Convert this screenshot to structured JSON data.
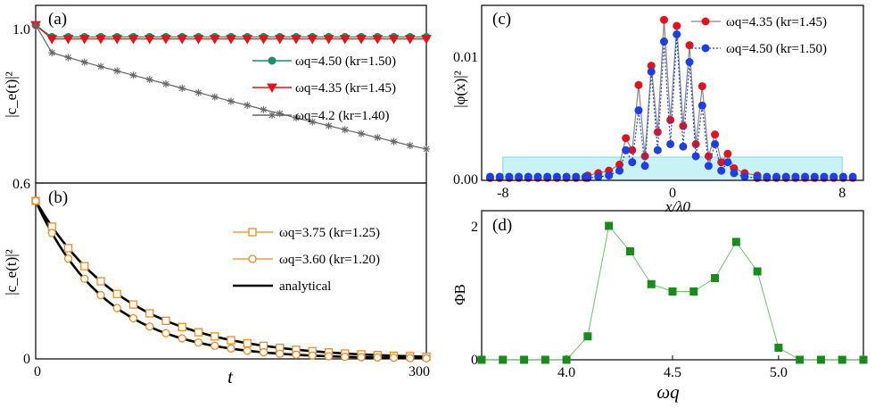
{
  "chart_data": [
    {
      "panel": "(a)",
      "type": "line",
      "ylabel": "|c_e(t)|²",
      "ylim": [
        0.6,
        1.05
      ],
      "xlim": [
        0,
        300
      ],
      "yticks": [
        "1.0",
        "0.6"
      ],
      "legend_placement": "right",
      "series": [
        {
          "name": "ωq=4.50 (kr=1.50)",
          "color": "#1a8f6a",
          "marker": "circle-filled",
          "x": [
            0,
            12.5,
            25,
            37.5,
            50,
            62.5,
            75,
            87.5,
            100,
            112.5,
            125,
            137.5,
            150,
            162.5,
            175,
            187.5,
            200,
            212.5,
            225,
            237.5,
            250,
            262.5,
            275,
            287.5,
            300
          ],
          "values": [
            1.0,
            0.97,
            0.97,
            0.97,
            0.97,
            0.97,
            0.97,
            0.97,
            0.97,
            0.97,
            0.97,
            0.97,
            0.97,
            0.97,
            0.97,
            0.97,
            0.97,
            0.97,
            0.97,
            0.97,
            0.97,
            0.97,
            0.97,
            0.97,
            0.97
          ]
        },
        {
          "name": "ωq=4.35 (kr=1.45)",
          "color": "#e0141e",
          "marker": "triangle-down",
          "x": [
            0,
            12.5,
            25,
            37.5,
            50,
            62.5,
            75,
            87.5,
            100,
            112.5,
            125,
            137.5,
            150,
            162.5,
            175,
            187.5,
            200,
            212.5,
            225,
            237.5,
            250,
            262.5,
            275,
            287.5,
            300
          ],
          "values": [
            1.0,
            0.965,
            0.965,
            0.965,
            0.965,
            0.965,
            0.965,
            0.965,
            0.965,
            0.965,
            0.965,
            0.965,
            0.965,
            0.965,
            0.965,
            0.965,
            0.965,
            0.965,
            0.965,
            0.965,
            0.965,
            0.965,
            0.965,
            0.965,
            0.965
          ]
        },
        {
          "name": "ωq=4.2 (kr=1.40)",
          "color": "#666666",
          "marker": "asterisk",
          "x": [
            0,
            12.5,
            25,
            37.5,
            50,
            62.5,
            75,
            87.5,
            100,
            112.5,
            125,
            137.5,
            150,
            162.5,
            175,
            187.5,
            200,
            212.5,
            225,
            237.5,
            250,
            262.5,
            275,
            287.5,
            300
          ],
          "values": [
            1.0,
            0.93,
            0.918,
            0.906,
            0.895,
            0.884,
            0.873,
            0.862,
            0.851,
            0.84,
            0.829,
            0.818,
            0.807,
            0.797,
            0.786,
            0.776,
            0.765,
            0.755,
            0.745,
            0.735,
            0.725,
            0.715,
            0.705,
            0.695,
            0.686
          ]
        }
      ]
    },
    {
      "panel": "(b)",
      "type": "line",
      "xlabel": "t",
      "ylabel": "|c_e(t)|²",
      "xlim": [
        0,
        300
      ],
      "ylim": [
        0,
        1.0
      ],
      "xticks": [
        "0",
        "300"
      ],
      "yticks": [
        "0"
      ],
      "legend_placement": "right",
      "series": [
        {
          "name": "ωq=3.75 (kr=1.25)",
          "color": "#f08a1c",
          "marker": "square-open",
          "x": [
            0,
            12.5,
            25,
            37.5,
            50,
            62.5,
            75,
            87.5,
            100,
            112.5,
            125,
            137.5,
            150,
            162.5,
            175,
            187.5,
            200,
            212.5,
            225,
            237.5,
            250,
            262.5,
            275,
            287.5,
            300
          ],
          "values": [
            1.0,
            0.837,
            0.701,
            0.587,
            0.491,
            0.411,
            0.344,
            0.288,
            0.241,
            0.202,
            0.169,
            0.142,
            0.118,
            0.099,
            0.083,
            0.07,
            0.058,
            0.049,
            0.041,
            0.034,
            0.029,
            0.024,
            0.02,
            0.017,
            0.014
          ]
        },
        {
          "name": "ωq=3.60 (kr=1.20)",
          "color": "#f08a1c",
          "marker": "circle-open",
          "x": [
            0,
            12.5,
            25,
            37.5,
            50,
            62.5,
            75,
            87.5,
            100,
            112.5,
            125,
            137.5,
            150,
            162.5,
            175,
            187.5,
            200,
            212.5,
            225,
            237.5,
            250,
            262.5,
            275,
            287.5,
            300
          ],
          "values": [
            1.0,
            0.797,
            0.635,
            0.507,
            0.404,
            0.322,
            0.257,
            0.205,
            0.163,
            0.13,
            0.104,
            0.083,
            0.066,
            0.052,
            0.042,
            0.033,
            0.027,
            0.021,
            0.017,
            0.013,
            0.011,
            0.009,
            0.007,
            0.005,
            0.004
          ]
        },
        {
          "name": "analytical",
          "color": "#000000",
          "marker": "none",
          "curves": [
            {
              "decay_rate": 0.0142
            },
            {
              "decay_rate": 0.0182
            }
          ]
        }
      ]
    },
    {
      "panel": "(c)",
      "type": "line",
      "xlabel": "x/λ0",
      "ylabel": "|φ(x)|²",
      "xlim": [
        -9,
        9
      ],
      "ylim": [
        0,
        0.0145
      ],
      "xticks": [
        "-8",
        "0",
        "8"
      ],
      "yticks": [
        "0.00",
        "0.01"
      ],
      "shaded_region_x": [
        -8,
        8
      ],
      "legend_placement": "top-right",
      "series": [
        {
          "name": "ωq=4.35 (kr=1.45)",
          "color": "#e0141e",
          "marker": "circle-filled",
          "line_color": "#888888",
          "line_style": "solid",
          "x": [
            -4.0,
            -3.5,
            -3.0,
            -2.5,
            -2.2,
            -1.9,
            -1.6,
            -1.3,
            -1.0,
            -0.7,
            -0.4,
            -0.1,
            0.2,
            0.5,
            0.8,
            1.1,
            1.4,
            1.7,
            2.0,
            2.3,
            2.6,
            2.9,
            3.4,
            4.0
          ],
          "values": [
            0.0004,
            0.0006,
            0.0008,
            0.0013,
            0.0035,
            0.0025,
            0.0079,
            0.002,
            0.0095,
            0.004,
            0.0133,
            0.005,
            0.0128,
            0.0045,
            0.0112,
            0.003,
            0.0078,
            0.002,
            0.0038,
            0.0015,
            0.0022,
            0.001,
            0.0006,
            0.0004
          ]
        },
        {
          "name": "ωq=4.50 (kr=1.50)",
          "color": "#1f3fe0",
          "marker": "circle-filled",
          "line_color": "#1f3fe0",
          "line_style": "dotted",
          "x": [
            -4.0,
            -3.5,
            -3.0,
            -2.5,
            -2.2,
            -1.9,
            -1.6,
            -1.3,
            -1.0,
            -0.7,
            -0.4,
            -0.1,
            0.2,
            0.5,
            0.8,
            1.1,
            1.4,
            1.7,
            2.0,
            2.3,
            2.6,
            2.9,
            3.4,
            4.0
          ],
          "values": [
            0.0002,
            0.0003,
            0.0004,
            0.0008,
            0.0025,
            0.0015,
            0.0058,
            0.0012,
            0.009,
            0.0025,
            0.0115,
            0.003,
            0.0121,
            0.0028,
            0.0098,
            0.002,
            0.0062,
            0.0012,
            0.003,
            0.0008,
            0.0015,
            0.0006,
            0.0003,
            0.0002
          ]
        }
      ]
    },
    {
      "panel": "(d)",
      "type": "line",
      "xlabel": "ωq",
      "ylabel": "ΦB",
      "xlim": [
        3.6,
        5.4
      ],
      "ylim": [
        0,
        2
      ],
      "xticks": [
        "4.0",
        "4.5",
        "5.0"
      ],
      "yticks": [
        "0",
        "2"
      ],
      "series": [
        {
          "name": "",
          "color": "#1a8a1a",
          "marker": "square-filled",
          "x": [
            3.6,
            3.7,
            3.8,
            3.9,
            4.0,
            4.1,
            4.2,
            4.3,
            4.4,
            4.5,
            4.6,
            4.7,
            4.8,
            4.9,
            5.0,
            5.1,
            5.2,
            5.3,
            5.4
          ],
          "values": [
            0.0,
            0.0,
            0.0,
            0.0,
            0.0,
            0.35,
            2.0,
            1.62,
            1.13,
            1.02,
            1.02,
            1.22,
            1.76,
            1.32,
            0.18,
            0.0,
            0.0,
            0.0,
            0.0
          ]
        }
      ]
    }
  ]
}
